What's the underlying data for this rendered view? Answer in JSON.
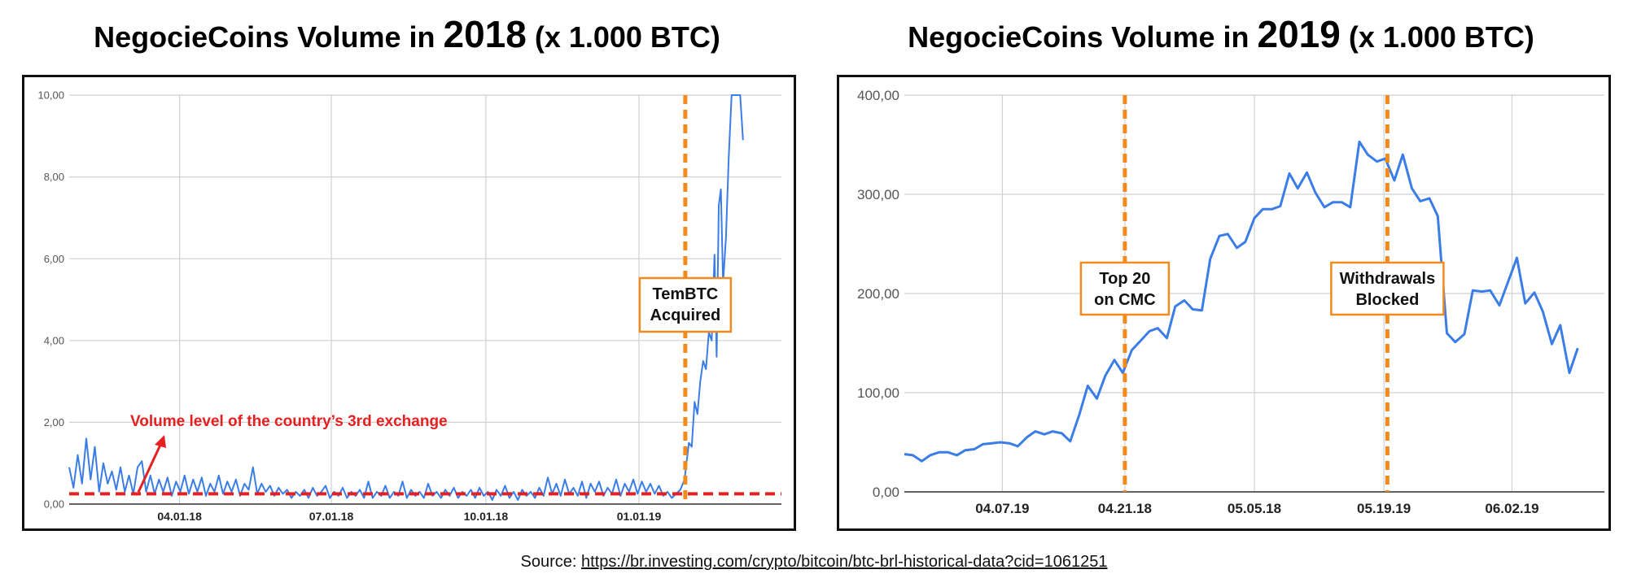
{
  "source": {
    "label": "Source:",
    "link": "https://br.investing.com/crypto/bitcoin/btc-brl-historical-data?cid=1061251"
  },
  "colors": {
    "line": "#3b7de6",
    "event": "#f28a1e",
    "threshold": "#e62020",
    "grid": "#d0d0d0"
  },
  "chart_data": [
    {
      "type": "line",
      "title": {
        "prefix": "NegocieCoins Volume in ",
        "year": "2018",
        "suffix": " (x 1.000 BTC)"
      },
      "ylim": [
        0,
        10
      ],
      "xlim": [
        0,
        1
      ],
      "yticks": [
        "0,00",
        "2,00",
        "4,00",
        "6,00",
        "8,00",
        "10,00"
      ],
      "ytick_values": [
        0,
        2,
        4,
        6,
        8,
        10
      ],
      "xticks": [
        {
          "x": 0.155,
          "label": "04.01.18"
        },
        {
          "x": 0.368,
          "label": "07.01.18"
        },
        {
          "x": 0.585,
          "label": "10.01.18"
        },
        {
          "x": 0.8,
          "label": "01.01.19"
        }
      ],
      "grid": true,
      "series": [
        {
          "values_note": "",
          "points": [
            [
              0.0,
              0.9
            ],
            [
              0.006,
              0.4
            ],
            [
              0.012,
              1.2
            ],
            [
              0.018,
              0.5
            ],
            [
              0.024,
              1.6
            ],
            [
              0.03,
              0.6
            ],
            [
              0.036,
              1.4
            ],
            [
              0.042,
              0.3
            ],
            [
              0.048,
              1.0
            ],
            [
              0.054,
              0.5
            ],
            [
              0.06,
              0.8
            ],
            [
              0.066,
              0.35
            ],
            [
              0.072,
              0.9
            ],
            [
              0.078,
              0.3
            ],
            [
              0.084,
              0.7
            ],
            [
              0.09,
              0.25
            ],
            [
              0.096,
              0.9
            ],
            [
              0.102,
              1.05
            ],
            [
              0.108,
              0.3
            ],
            [
              0.114,
              0.7
            ],
            [
              0.12,
              0.25
            ],
            [
              0.126,
              0.6
            ],
            [
              0.132,
              0.3
            ],
            [
              0.138,
              0.65
            ],
            [
              0.144,
              0.2
            ],
            [
              0.15,
              0.55
            ],
            [
              0.156,
              0.3
            ],
            [
              0.162,
              0.7
            ],
            [
              0.168,
              0.25
            ],
            [
              0.174,
              0.6
            ],
            [
              0.18,
              0.3
            ],
            [
              0.186,
              0.65
            ],
            [
              0.192,
              0.2
            ],
            [
              0.198,
              0.5
            ],
            [
              0.204,
              0.3
            ],
            [
              0.21,
              0.7
            ],
            [
              0.216,
              0.25
            ],
            [
              0.222,
              0.55
            ],
            [
              0.228,
              0.3
            ],
            [
              0.234,
              0.6
            ],
            [
              0.24,
              0.2
            ],
            [
              0.246,
              0.5
            ],
            [
              0.252,
              0.35
            ],
            [
              0.258,
              0.9
            ],
            [
              0.264,
              0.25
            ],
            [
              0.27,
              0.5
            ],
            [
              0.276,
              0.3
            ],
            [
              0.282,
              0.45
            ],
            [
              0.288,
              0.2
            ],
            [
              0.294,
              0.4
            ],
            [
              0.3,
              0.25
            ],
            [
              0.306,
              0.35
            ],
            [
              0.312,
              0.15
            ],
            [
              0.318,
              0.3
            ],
            [
              0.324,
              0.2
            ],
            [
              0.33,
              0.35
            ],
            [
              0.336,
              0.15
            ],
            [
              0.342,
              0.4
            ],
            [
              0.348,
              0.2
            ],
            [
              0.354,
              0.3
            ],
            [
              0.36,
              0.45
            ],
            [
              0.366,
              0.15
            ],
            [
              0.372,
              0.3
            ],
            [
              0.378,
              0.2
            ],
            [
              0.384,
              0.4
            ],
            [
              0.39,
              0.15
            ],
            [
              0.396,
              0.3
            ],
            [
              0.402,
              0.2
            ],
            [
              0.408,
              0.35
            ],
            [
              0.414,
              0.15
            ],
            [
              0.42,
              0.55
            ],
            [
              0.426,
              0.15
            ],
            [
              0.432,
              0.3
            ],
            [
              0.438,
              0.2
            ],
            [
              0.444,
              0.45
            ],
            [
              0.45,
              0.15
            ],
            [
              0.456,
              0.3
            ],
            [
              0.462,
              0.2
            ],
            [
              0.468,
              0.55
            ],
            [
              0.474,
              0.15
            ],
            [
              0.48,
              0.35
            ],
            [
              0.486,
              0.2
            ],
            [
              0.492,
              0.3
            ],
            [
              0.498,
              0.15
            ],
            [
              0.504,
              0.5
            ],
            [
              0.51,
              0.2
            ],
            [
              0.516,
              0.3
            ],
            [
              0.522,
              0.15
            ],
            [
              0.528,
              0.35
            ],
            [
              0.534,
              0.2
            ],
            [
              0.54,
              0.4
            ],
            [
              0.546,
              0.15
            ],
            [
              0.552,
              0.3
            ],
            [
              0.558,
              0.2
            ],
            [
              0.564,
              0.35
            ],
            [
              0.57,
              0.15
            ],
            [
              0.576,
              0.4
            ],
            [
              0.582,
              0.2
            ],
            [
              0.588,
              0.3
            ],
            [
              0.594,
              0.1
            ],
            [
              0.6,
              0.35
            ],
            [
              0.606,
              0.2
            ],
            [
              0.612,
              0.45
            ],
            [
              0.618,
              0.15
            ],
            [
              0.624,
              0.3
            ],
            [
              0.63,
              0.1
            ],
            [
              0.636,
              0.35
            ],
            [
              0.642,
              0.2
            ],
            [
              0.648,
              0.3
            ],
            [
              0.654,
              0.15
            ],
            [
              0.66,
              0.4
            ],
            [
              0.666,
              0.2
            ],
            [
              0.672,
              0.65
            ],
            [
              0.678,
              0.25
            ],
            [
              0.684,
              0.5
            ],
            [
              0.69,
              0.2
            ],
            [
              0.696,
              0.6
            ],
            [
              0.702,
              0.25
            ],
            [
              0.708,
              0.4
            ],
            [
              0.714,
              0.2
            ],
            [
              0.72,
              0.55
            ],
            [
              0.726,
              0.15
            ],
            [
              0.732,
              0.5
            ],
            [
              0.738,
              0.3
            ],
            [
              0.744,
              0.55
            ],
            [
              0.75,
              0.2
            ],
            [
              0.756,
              0.4
            ],
            [
              0.762,
              0.25
            ],
            [
              0.768,
              0.6
            ],
            [
              0.774,
              0.2
            ],
            [
              0.78,
              0.5
            ],
            [
              0.786,
              0.3
            ],
            [
              0.792,
              0.6
            ],
            [
              0.798,
              0.25
            ],
            [
              0.804,
              0.55
            ],
            [
              0.81,
              0.3
            ],
            [
              0.816,
              0.5
            ],
            [
              0.822,
              0.25
            ],
            [
              0.828,
              0.45
            ],
            [
              0.834,
              0.2
            ],
            [
              0.84,
              0.3
            ],
            [
              0.846,
              0.15
            ],
            [
              0.852,
              0.25
            ],
            [
              0.858,
              0.35
            ],
            [
              0.864,
              0.6
            ],
            [
              0.87,
              1.5
            ],
            [
              0.874,
              1.4
            ],
            [
              0.878,
              2.5
            ],
            [
              0.882,
              2.2
            ],
            [
              0.886,
              3.0
            ],
            [
              0.89,
              3.5
            ],
            [
              0.894,
              3.3
            ],
            [
              0.898,
              4.2
            ],
            [
              0.902,
              4.0
            ],
            [
              0.906,
              6.1
            ],
            [
              0.909,
              3.6
            ],
            [
              0.912,
              7.3
            ],
            [
              0.915,
              7.7
            ],
            [
              0.918,
              5.4
            ],
            [
              0.922,
              6.5
            ],
            [
              0.926,
              8.5
            ],
            [
              0.93,
              10.3
            ],
            [
              0.936,
              10.5
            ],
            [
              0.942,
              10.3
            ],
            [
              0.946,
              8.9
            ]
          ]
        }
      ],
      "event": {
        "x": 0.865,
        "label_lines": [
          "TemBTC",
          "Acquired"
        ]
      },
      "threshold": {
        "y": 0.25,
        "label": "Volume level of the country’s 3rd exchange"
      }
    },
    {
      "type": "line",
      "title": {
        "prefix": "NegocieCoins Volume in ",
        "year": "2019",
        "suffix": " (x 1.000 BTC)"
      },
      "ylim": [
        0,
        400
      ],
      "xlim": [
        0,
        1
      ],
      "yticks": [
        "0,00",
        "100,00",
        "200,00",
        "300,00",
        "400,00"
      ],
      "ytick_values": [
        0,
        100,
        200,
        300,
        400
      ],
      "xticks": [
        {
          "x": 0.14,
          "label": "04.07.19"
        },
        {
          "x": 0.315,
          "label": "04.21.18"
        },
        {
          "x": 0.5,
          "label": "05.05.18"
        },
        {
          "x": 0.685,
          "label": "05.19.19"
        },
        {
          "x": 0.868,
          "label": "06.02.19"
        }
      ],
      "grid": true,
      "series": [
        {
          "points": [
            [
              0.0,
              38
            ],
            [
              0.012,
              37
            ],
            [
              0.025,
              31
            ],
            [
              0.037,
              37
            ],
            [
              0.05,
              40
            ],
            [
              0.062,
              40
            ],
            [
              0.075,
              37
            ],
            [
              0.087,
              42
            ],
            [
              0.1,
              43
            ],
            [
              0.112,
              48
            ],
            [
              0.125,
              49
            ],
            [
              0.137,
              50
            ],
            [
              0.15,
              49
            ],
            [
              0.162,
              46
            ],
            [
              0.175,
              55
            ],
            [
              0.187,
              61
            ],
            [
              0.2,
              58
            ],
            [
              0.212,
              61
            ],
            [
              0.225,
              59
            ],
            [
              0.237,
              51
            ],
            [
              0.25,
              78
            ],
            [
              0.262,
              107
            ],
            [
              0.275,
              94
            ],
            [
              0.287,
              117
            ],
            [
              0.3,
              133
            ],
            [
              0.312,
              120
            ],
            [
              0.325,
              143
            ],
            [
              0.337,
              152
            ],
            [
              0.35,
              162
            ],
            [
              0.362,
              165
            ],
            [
              0.375,
              155
            ],
            [
              0.387,
              187
            ],
            [
              0.4,
              193
            ],
            [
              0.412,
              184
            ],
            [
              0.425,
              183
            ],
            [
              0.437,
              235
            ],
            [
              0.45,
              258
            ],
            [
              0.462,
              260
            ],
            [
              0.475,
              246
            ],
            [
              0.487,
              252
            ],
            [
              0.5,
              276
            ],
            [
              0.512,
              285
            ],
            [
              0.525,
              285
            ],
            [
              0.537,
              288
            ],
            [
              0.55,
              321
            ],
            [
              0.562,
              306
            ],
            [
              0.575,
              322
            ],
            [
              0.587,
              302
            ],
            [
              0.6,
              287
            ],
            [
              0.612,
              292
            ],
            [
              0.625,
              292
            ],
            [
              0.637,
              287
            ],
            [
              0.65,
              353
            ],
            [
              0.662,
              340
            ],
            [
              0.675,
              333
            ],
            [
              0.687,
              336
            ],
            [
              0.7,
              314
            ],
            [
              0.712,
              340
            ],
            [
              0.725,
              306
            ],
            [
              0.737,
              293
            ],
            [
              0.75,
              296
            ],
            [
              0.762,
              278
            ],
            [
              0.775,
              160
            ],
            [
              0.787,
              151
            ],
            [
              0.8,
              159
            ],
            [
              0.812,
              203
            ],
            [
              0.825,
              202
            ],
            [
              0.837,
              203
            ],
            [
              0.85,
              188
            ],
            [
              0.862,
              211
            ],
            [
              0.875,
              236
            ],
            [
              0.887,
              190
            ],
            [
              0.9,
              201
            ],
            [
              0.912,
              182
            ],
            [
              0.925,
              149
            ],
            [
              0.937,
              168
            ],
            [
              0.95,
              120
            ],
            [
              0.962,
              145
            ]
          ]
        }
      ],
      "events": [
        {
          "x": 0.315,
          "label_lines": [
            "Top 20",
            "on CMC"
          ]
        },
        {
          "x": 0.69,
          "label_lines": [
            "Withdrawals",
            "Blocked"
          ]
        }
      ]
    }
  ]
}
